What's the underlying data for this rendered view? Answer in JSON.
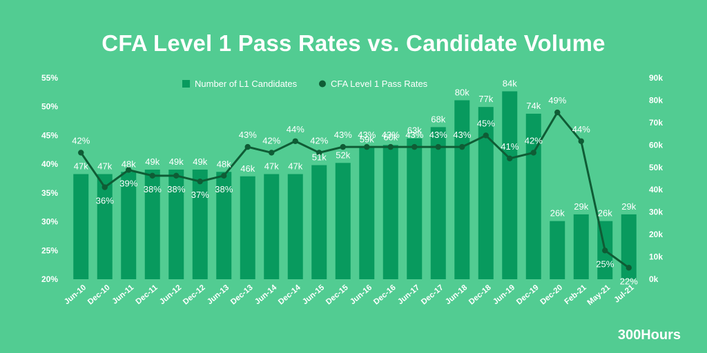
{
  "chart_data": {
    "type": "bar+line",
    "title": "CFA Level 1 Pass Rates vs. Candidate Volume",
    "categories": [
      "Jun-10",
      "Dec-10",
      "Jun-11",
      "Dec-11",
      "Jun-12",
      "Dec-12",
      "Jun-13",
      "Dec-13",
      "Jun-14",
      "Dec-14",
      "Jun-15",
      "Dec-15",
      "Jun-16",
      "Dec-16",
      "Jun-17",
      "Dec-17",
      "Jun-18",
      "Dec-18",
      "Jun-19",
      "Dec-19",
      "Dec-20",
      "Feb-21",
      "May-21",
      "Jul-21"
    ],
    "series": [
      {
        "name": "Number of L1 Candidates",
        "kind": "bar",
        "axis": "right",
        "values": [
          47,
          47,
          48,
          49,
          49,
          49,
          48,
          46,
          47,
          47,
          51,
          52,
          59,
          60,
          63,
          68,
          80,
          77,
          84,
          74,
          26,
          29,
          26,
          29
        ],
        "labels": [
          "47k",
          "47k",
          "48k",
          "49k",
          "49k",
          "49k",
          "48k",
          "46k",
          "47k",
          "47k",
          "51k",
          "52k",
          "59k",
          "60k",
          "63k",
          "68k",
          "80k",
          "77k",
          "84k",
          "74k",
          "26k",
          "29k",
          "26k",
          "29k"
        ]
      },
      {
        "name": "CFA Level 1 Pass Rates",
        "kind": "line",
        "axis": "left",
        "values": [
          42,
          36,
          39,
          38,
          38,
          37,
          38,
          43,
          42,
          44,
          42,
          43,
          43,
          43,
          43,
          43,
          43,
          45,
          41,
          42,
          49,
          44,
          25,
          22
        ],
        "labels": [
          "42%",
          "36%",
          "39%",
          "38%",
          "38%",
          "37%",
          "38%",
          "43%",
          "42%",
          "44%",
          "42%",
          "43%",
          "43%",
          "43%",
          "43%",
          "43%",
          "43%",
          "45%",
          "41%",
          "42%",
          "49%",
          "44%",
          "25%",
          "22%"
        ]
      }
    ],
    "y_left": {
      "min": 20,
      "max": 55,
      "ticks": [
        "20%",
        "25%",
        "30%",
        "35%",
        "40%",
        "45%",
        "50%",
        "55%"
      ]
    },
    "y_right": {
      "min": 0,
      "max": 90,
      "ticks": [
        "0k",
        "10k",
        "20k",
        "30k",
        "40k",
        "50k",
        "60k",
        "70k",
        "80k",
        "90k"
      ]
    },
    "legend_position": "top-center",
    "colors": {
      "background": "#52cc92",
      "bar": "#089a5e",
      "line": "#0f5c35",
      "text": "#ffffff"
    }
  },
  "brand": "300Hours"
}
